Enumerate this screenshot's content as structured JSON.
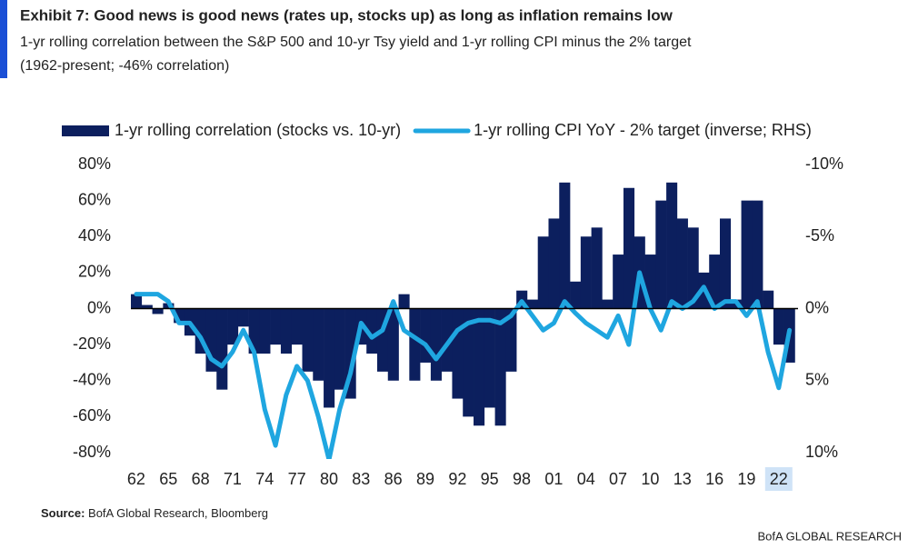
{
  "chart_data": {
    "type": "bar-line",
    "title": "Exhibit 7: Good news is good news (rates up, stocks up) as long as inflation remains low",
    "subtitle_lines": [
      "1-yr rolling correlation between the S&P 500 and 10-yr Tsy yield and 1-yr rolling CPI minus the 2% target",
      "(1962-present; -46% correlation)"
    ],
    "x": [
      1962,
      1963,
      1964,
      1965,
      1966,
      1967,
      1968,
      1969,
      1970,
      1971,
      1972,
      1973,
      1974,
      1975,
      1976,
      1977,
      1978,
      1979,
      1980,
      1981,
      1982,
      1983,
      1984,
      1985,
      1986,
      1987,
      1988,
      1989,
      1990,
      1991,
      1992,
      1993,
      1994,
      1995,
      1996,
      1997,
      1998,
      1999,
      2000,
      2001,
      2002,
      2003,
      2004,
      2005,
      2006,
      2007,
      2008,
      2009,
      2010,
      2011,
      2012,
      2013,
      2014,
      2015,
      2016,
      2017,
      2018,
      2019,
      2020,
      2021,
      2022,
      2023
    ],
    "series": [
      {
        "name": "1-yr rolling correlation (stocks vs. 10-yr)",
        "style": "area",
        "color": "#0c1f5e",
        "values": [
          8,
          2,
          -3,
          3,
          -8,
          -15,
          -25,
          -35,
          -45,
          -20,
          -10,
          -25,
          -25,
          -20,
          -25,
          -20,
          -35,
          -40,
          -55,
          -45,
          -50,
          -20,
          -25,
          -35,
          -40,
          8,
          -40,
          -30,
          -40,
          -35,
          -50,
          -60,
          -65,
          -55,
          -65,
          -35,
          10,
          5,
          40,
          50,
          70,
          15,
          40,
          45,
          5,
          30,
          67,
          40,
          30,
          60,
          70,
          50,
          45,
          20,
          30,
          50,
          5,
          60,
          60,
          10,
          -20,
          -30
        ]
      },
      {
        "name": "1-yr rolling CPI YoY - 2% target (inverse; RHS)",
        "style": "line",
        "axis": "y2",
        "color": "#1fa6e0",
        "values": [
          -1,
          -1,
          -1,
          -0.5,
          1,
          1,
          2,
          3.5,
          4,
          3,
          1.5,
          3,
          7,
          9.5,
          6,
          4,
          5,
          7.5,
          10.5,
          7,
          4.5,
          1,
          2,
          1.5,
          -0.5,
          1.5,
          2,
          2.5,
          3.5,
          2.5,
          1.5,
          1,
          0.8,
          0.8,
          1,
          0.5,
          -0.5,
          0.5,
          1.5,
          1,
          -0.5,
          0.3,
          1,
          1.5,
          2,
          0.5,
          2.5,
          -2.5,
          0,
          1.5,
          -0.5,
          0,
          -0.5,
          -1.5,
          0,
          -0.5,
          -0.5,
          0.5,
          -0.5,
          3,
          5.5,
          1.5
        ]
      }
    ],
    "xlim": [
      1961.5,
      2023.8
    ],
    "xticks": [
      {
        "value": 1962,
        "label": "62"
      },
      {
        "value": 1965,
        "label": "65"
      },
      {
        "value": 1968,
        "label": "68"
      },
      {
        "value": 1971,
        "label": "71"
      },
      {
        "value": 1974,
        "label": "74"
      },
      {
        "value": 1977,
        "label": "77"
      },
      {
        "value": 1980,
        "label": "80"
      },
      {
        "value": 1983,
        "label": "83"
      },
      {
        "value": 1986,
        "label": "86"
      },
      {
        "value": 1989,
        "label": "89"
      },
      {
        "value": 1992,
        "label": "92"
      },
      {
        "value": 1995,
        "label": "95"
      },
      {
        "value": 1998,
        "label": "98"
      },
      {
        "value": 2001,
        "label": "01"
      },
      {
        "value": 2004,
        "label": "04"
      },
      {
        "value": 2007,
        "label": "07"
      },
      {
        "value": 2010,
        "label": "10"
      },
      {
        "value": 2013,
        "label": "13"
      },
      {
        "value": 2016,
        "label": "16"
      },
      {
        "value": 2019,
        "label": "19"
      },
      {
        "value": 2022,
        "label": "22"
      }
    ],
    "ylim": [
      -80,
      80
    ],
    "yticks": [
      {
        "value": 80,
        "label": "80%"
      },
      {
        "value": 60,
        "label": "60%"
      },
      {
        "value": 40,
        "label": "40%"
      },
      {
        "value": 20,
        "label": "20%"
      },
      {
        "value": 0,
        "label": "0%"
      },
      {
        "value": -20,
        "label": "-20%"
      },
      {
        "value": -40,
        "label": "-40%"
      },
      {
        "value": -60,
        "label": "-60%"
      },
      {
        "value": -80,
        "label": "-80%"
      }
    ],
    "y2lim": [
      10,
      -10
    ],
    "y2ticks": [
      {
        "value": -10,
        "label": "-10%"
      },
      {
        "value": -5,
        "label": "-5%"
      },
      {
        "value": 0,
        "label": "0%"
      },
      {
        "value": 5,
        "label": "5%"
      },
      {
        "value": 10,
        "label": "10%"
      }
    ],
    "source_label": "Source:",
    "source_text": "BofA Global Research, Bloomberg",
    "footer": "BofA GLOBAL RESEARCH"
  }
}
